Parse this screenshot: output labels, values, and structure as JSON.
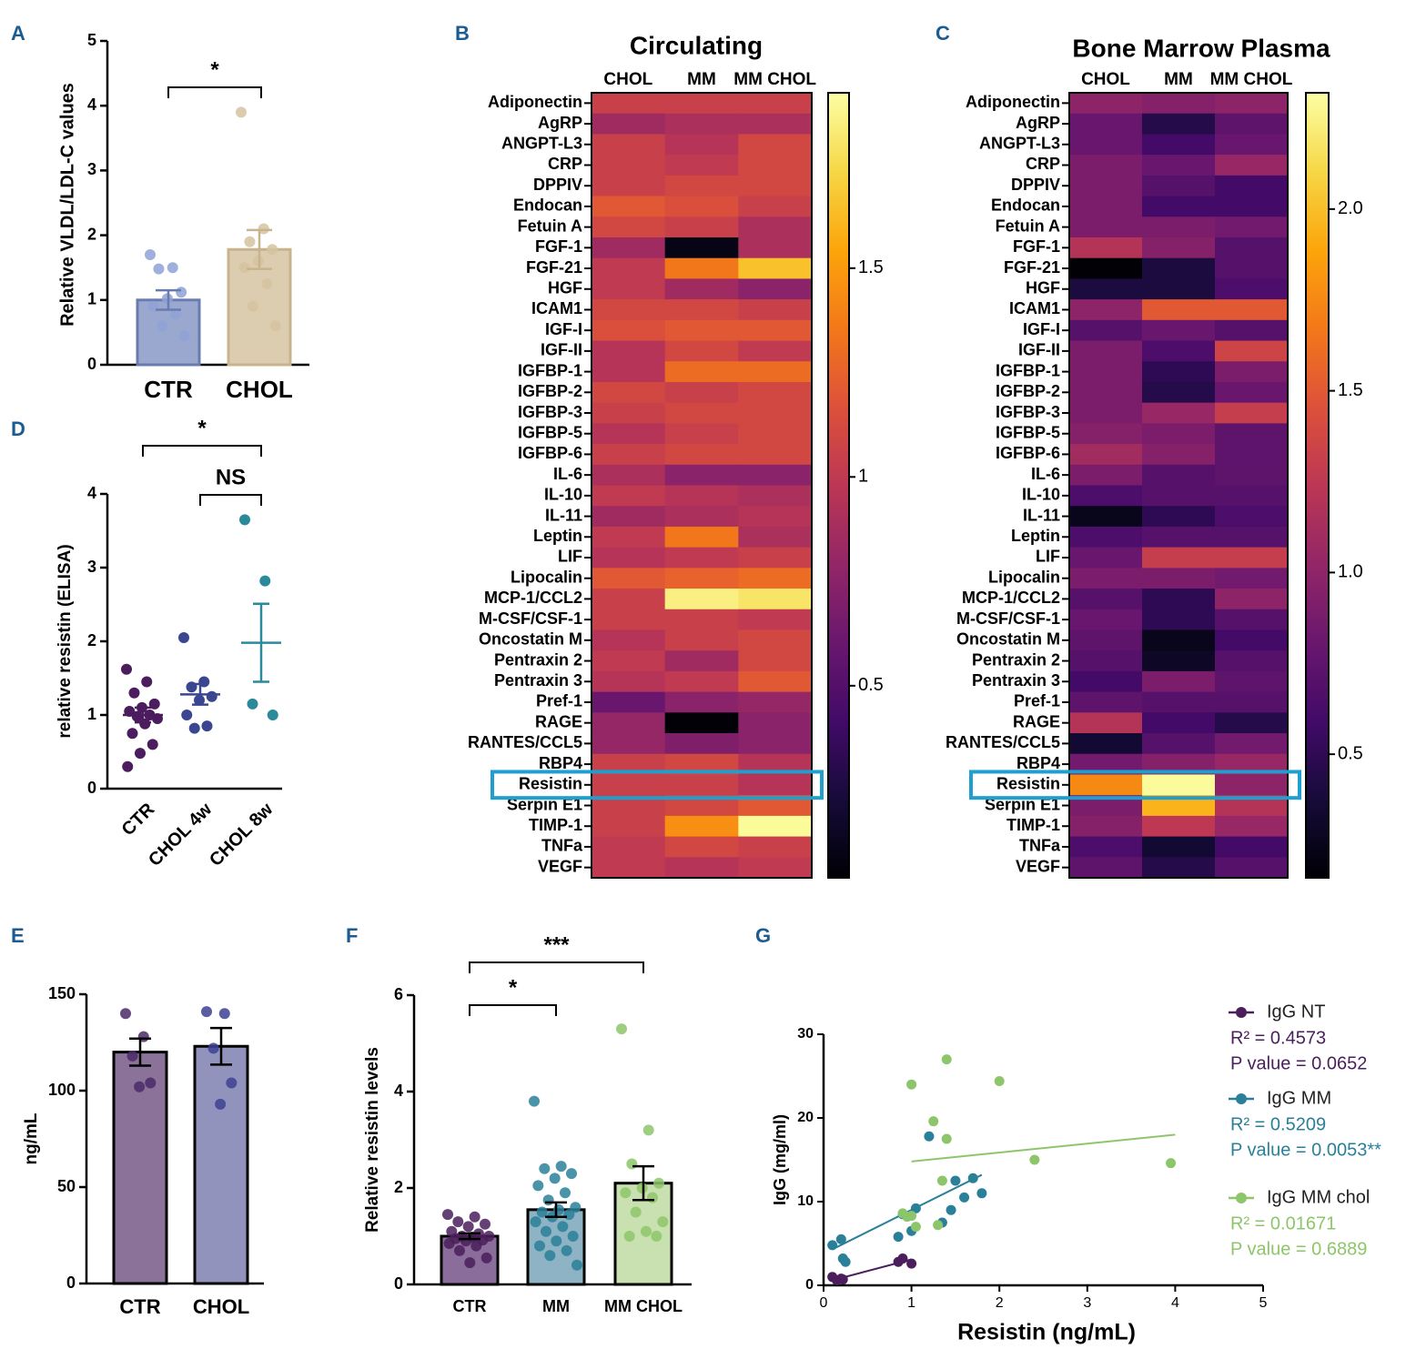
{
  "chart_data": [
    {
      "type": "bar",
      "panel": "A",
      "ylabel": "Relative VLDL/LDL-C values",
      "categories": [
        "CTR",
        "CHOL"
      ],
      "values": [
        1.0,
        1.78
      ],
      "errors": [
        0.15,
        0.3
      ],
      "points": [
        [
          1.7,
          1.5,
          1.48,
          1.12,
          1.02,
          0.9,
          0.78,
          0.6,
          0.45
        ],
        [
          3.9,
          2.1,
          1.9,
          1.78,
          1.6,
          1.5,
          1.25,
          0.9,
          0.6
        ]
      ],
      "colors": [
        "#9aa8d0",
        "#dccdb0"
      ],
      "edge_colors": [
        "#6a7bb0",
        "#c8b48c"
      ],
      "point_colors": [
        "#8fa2d6",
        "#d6c3a0"
      ],
      "ylim": [
        0,
        5
      ],
      "yticks": [
        0,
        1,
        2,
        3,
        4,
        5
      ],
      "annotations": [
        "*"
      ]
    },
    {
      "type": "heatmap",
      "panel": "B",
      "title": "Circulating",
      "columns": [
        "CHOL",
        "MM",
        "MM CHOL"
      ],
      "rows": [
        "Adiponectin",
        "AgRP",
        "ANGPT-L3",
        "CRP",
        "DPPIV",
        "Endocan",
        "Fetuin A",
        "FGF-1",
        "FGF-21",
        "HGF",
        "ICAM1",
        "IGF-I",
        "IGF-II",
        "IGFBP-1",
        "IGFBP-2",
        "IGFBP-3",
        "IGFBP-5",
        "IGFBP-6",
        "IL-6",
        "IL-10",
        "IL-11",
        "Leptin",
        "LIF",
        "Lipocalin",
        "MCP-1/CCL2",
        "M-CSF/CSF-1",
        "Oncostatin M",
        "Pentraxin 2",
        "Pentraxin 3",
        "Pref-1",
        "RAGE",
        "RANTES/CCL5",
        "RBP4",
        "Resistin",
        "Serpin E1",
        "TIMP-1",
        "TNFa",
        "VEGF"
      ],
      "values": [
        [
          1.05,
          1.05,
          1.05
        ],
        [
          0.85,
          0.9,
          0.9
        ],
        [
          1.05,
          0.95,
          1.1
        ],
        [
          1.05,
          1.0,
          1.1
        ],
        [
          1.05,
          1.1,
          1.1
        ],
        [
          1.2,
          1.15,
          1.05
        ],
        [
          1.1,
          1.05,
          0.9
        ],
        [
          0.85,
          0.1,
          0.9
        ],
        [
          1.0,
          1.35,
          1.65
        ],
        [
          1.0,
          0.85,
          0.75
        ],
        [
          1.1,
          1.1,
          1.05
        ],
        [
          1.15,
          1.2,
          1.2
        ],
        [
          0.95,
          1.1,
          1.0
        ],
        [
          0.95,
          1.3,
          1.3
        ],
        [
          1.1,
          1.05,
          1.1
        ],
        [
          1.05,
          1.1,
          1.1
        ],
        [
          0.95,
          1.05,
          1.1
        ],
        [
          1.05,
          1.1,
          1.1
        ],
        [
          0.9,
          0.75,
          0.75
        ],
        [
          1.0,
          0.95,
          0.9
        ],
        [
          0.85,
          0.9,
          0.95
        ],
        [
          1.0,
          1.35,
          0.9
        ],
        [
          0.95,
          1.0,
          1.05
        ],
        [
          1.2,
          1.25,
          1.3
        ],
        [
          1.05,
          1.85,
          1.8
        ],
        [
          1.05,
          1.05,
          1.0
        ],
        [
          0.95,
          1.05,
          1.1
        ],
        [
          1.0,
          0.85,
          1.1
        ],
        [
          0.95,
          1.0,
          1.2
        ],
        [
          0.6,
          0.75,
          0.8
        ],
        [
          0.8,
          0.05,
          0.75
        ],
        [
          0.8,
          0.7,
          0.75
        ],
        [
          1.05,
          1.1,
          0.95
        ],
        [
          1.05,
          1.05,
          0.95
        ],
        [
          1.05,
          1.1,
          1.2
        ],
        [
          1.05,
          1.45,
          1.9
        ],
        [
          1.0,
          1.1,
          1.05
        ],
        [
          1.0,
          0.95,
          1.0
        ]
      ],
      "clim": [
        0.04,
        1.92
      ],
      "cticks": [
        0.5,
        1,
        1.5
      ],
      "colormap": "inferno"
    },
    {
      "type": "heatmap",
      "panel": "C",
      "title": "Bone Marrow Plasma",
      "columns": [
        "CHOL",
        "MM",
        "MM CHOL"
      ],
      "rows": [
        "Adiponectin",
        "AgRP",
        "ANGPT-L3",
        "CRP",
        "DPPIV",
        "Endocan",
        "Fetuin A",
        "FGF-1",
        "FGF-21",
        "HGF",
        "ICAM1",
        "IGF-I",
        "IGF-II",
        "IGFBP-1",
        "IGFBP-2",
        "IGFBP-3",
        "IGFBP-5",
        "IGFBP-6",
        "IL-6",
        "IL-10",
        "IL-11",
        "Leptin",
        "LIF",
        "Lipocalin",
        "MCP-1/CCL2",
        "M-CSF/CSF-1",
        "Oncostatin M",
        "Pentraxin 2",
        "Pentraxin 3",
        "Pref-1",
        "RAGE",
        "RANTES/CCL5",
        "RBP4",
        "Resistin",
        "Serpin E1",
        "TIMP-1",
        "TNFa",
        "VEGF"
      ],
      "values": [
        [
          1.0,
          0.95,
          1.0
        ],
        [
          0.8,
          0.45,
          0.75
        ],
        [
          0.8,
          0.6,
          0.8
        ],
        [
          0.9,
          0.8,
          1.05
        ],
        [
          0.9,
          0.7,
          0.6
        ],
        [
          0.9,
          0.6,
          0.6
        ],
        [
          0.9,
          0.9,
          0.85
        ],
        [
          1.2,
          0.95,
          0.7
        ],
        [
          0.17,
          0.4,
          0.7
        ],
        [
          0.4,
          0.4,
          0.65
        ],
        [
          1.0,
          1.5,
          1.5
        ],
        [
          0.7,
          0.8,
          0.7
        ],
        [
          0.9,
          0.65,
          1.35
        ],
        [
          0.9,
          0.5,
          0.9
        ],
        [
          0.9,
          0.45,
          0.8
        ],
        [
          0.9,
          1.05,
          1.3
        ],
        [
          0.95,
          0.9,
          0.75
        ],
        [
          1.1,
          0.95,
          0.75
        ],
        [
          0.9,
          0.7,
          0.75
        ],
        [
          0.65,
          0.7,
          0.7
        ],
        [
          0.25,
          0.5,
          0.65
        ],
        [
          0.65,
          0.7,
          0.7
        ],
        [
          0.8,
          1.3,
          1.3
        ],
        [
          0.9,
          0.9,
          0.85
        ],
        [
          0.7,
          0.5,
          1.0
        ],
        [
          0.8,
          0.5,
          0.7
        ],
        [
          0.75,
          0.25,
          0.6
        ],
        [
          0.7,
          0.3,
          0.7
        ],
        [
          0.6,
          0.9,
          0.75
        ],
        [
          0.75,
          0.7,
          0.7
        ],
        [
          1.2,
          0.6,
          0.45
        ],
        [
          0.35,
          0.7,
          0.85
        ],
        [
          0.85,
          0.95,
          1.05
        ],
        [
          1.75,
          2.3,
          1.0
        ],
        [
          0.9,
          1.95,
          1.2
        ],
        [
          0.95,
          1.25,
          1.05
        ],
        [
          0.65,
          0.35,
          0.6
        ],
        [
          0.75,
          0.45,
          0.7
        ]
      ],
      "clim": [
        0.16,
        2.32
      ],
      "cticks": [
        0.5,
        {
          "value": 1,
          "label": "1.0"
        },
        1.5,
        {
          "value": 2,
          "label": "2.0"
        }
      ],
      "colormap": "inferno"
    },
    {
      "type": "dot",
      "panel": "D",
      "ylabel": "relative resistin (ELISA)",
      "categories": [
        "CTR",
        "CHOL 4w",
        "CHOL 8w"
      ],
      "values": [
        1.0,
        1.28,
        1.98
      ],
      "errors": [
        0.1,
        0.14,
        0.53
      ],
      "points": [
        [
          1.62,
          1.45,
          1.3,
          1.15,
          1.1,
          1.05,
          1.0,
          0.98,
          0.95,
          0.88,
          0.75,
          0.6,
          0.48,
          0.3
        ],
        [
          2.05,
          1.45,
          1.38,
          1.25,
          1.2,
          1.0,
          0.85,
          0.82
        ],
        [
          3.65,
          2.82,
          1.15,
          1.0
        ]
      ],
      "colors": [
        "#4b1c5e",
        "#3a4790",
        "#2a8a9c"
      ],
      "ylim": [
        0,
        4
      ],
      "yticks": [
        0,
        1,
        2,
        3,
        4
      ],
      "annotations": [
        "*",
        "NS"
      ]
    },
    {
      "type": "bar",
      "panel": "E",
      "ylabel": "ng/mL",
      "categories": [
        "CTR",
        "CHOL"
      ],
      "values": [
        120,
        123
      ],
      "errors": [
        7,
        9.5
      ],
      "points": [
        [
          140,
          128,
          118,
          104,
          102
        ],
        [
          141,
          140,
          122,
          104,
          93
        ]
      ],
      "colors": [
        "#8b7299",
        "#9193bd"
      ],
      "edge_colors": [
        "#000000",
        "#000000"
      ],
      "point_colors": [
        "#4a2a6a",
        "#3d4190"
      ],
      "ylim": [
        0,
        150
      ],
      "yticks": [
        0,
        50,
        100,
        150
      ],
      "annotations": []
    },
    {
      "type": "bar",
      "panel": "F",
      "ylabel": "Relative resistin levels",
      "categories": [
        "CTR",
        "MM",
        "MM CHOL"
      ],
      "values": [
        1.0,
        1.55,
        2.1
      ],
      "errors": [
        0.06,
        0.15,
        0.35
      ],
      "points": [
        [
          1.45,
          1.4,
          1.3,
          1.25,
          1.2,
          1.1,
          1.05,
          1.0,
          1.0,
          0.98,
          0.95,
          0.92,
          0.9,
          0.85,
          0.8,
          0.7,
          0.55,
          0.45
        ],
        [
          3.8,
          2.45,
          2.4,
          2.3,
          2.2,
          2.05,
          1.9,
          1.75,
          1.6,
          1.55,
          1.5,
          1.45,
          1.4,
          1.3,
          1.2,
          1.1,
          1.0,
          0.9,
          0.8,
          0.7,
          0.6,
          0.4
        ],
        [
          5.3,
          3.2,
          2.5,
          2.1,
          2.0,
          1.9,
          1.8,
          1.5,
          1.3,
          1.1,
          1.0,
          1.0
        ]
      ],
      "colors": [
        "#8a6d9b",
        "#8db3c4",
        "#c9e1b0"
      ],
      "edge_colors": [
        "#000000",
        "#000000",
        "#000000"
      ],
      "point_colors": [
        "#4a1f5c",
        "#2a8099",
        "#8dc66a"
      ],
      "ylim": [
        0,
        6
      ],
      "yticks": [
        0,
        2,
        4,
        6
      ],
      "annotations": [
        "***",
        "*"
      ]
    },
    {
      "type": "scatter",
      "panel": "G",
      "xlabel": "Resistin (ng/mL)",
      "ylabel": "IgG (mg/ml)",
      "xlim": [
        0,
        5
      ],
      "xticks": [
        0,
        1,
        2,
        3,
        4,
        5
      ],
      "ylim": [
        0,
        30
      ],
      "yticks": [
        0,
        10,
        20,
        30
      ],
      "series": [
        {
          "name": "IgG NT",
          "color": "#4a1f5c",
          "r2": "R² = 0.4573",
          "p": "P value = 0.0652",
          "x": [
            0.1,
            0.15,
            0.2,
            0.22,
            0.85,
            0.9,
            1.0
          ],
          "y": [
            1.0,
            0.6,
            0.8,
            0.7,
            2.8,
            3.2,
            2.6
          ],
          "fit_x": [
            0.1,
            1.0
          ],
          "fit_y": [
            0.6,
            3.1
          ]
        },
        {
          "name": "IgG MM",
          "color": "#2a8099",
          "r2": "R² = 0.5209",
          "p": "P value = 0.0053**",
          "x": [
            0.1,
            0.2,
            0.22,
            0.25,
            0.85,
            0.9,
            1.0,
            1.05,
            1.2,
            1.35,
            1.45,
            1.5,
            1.6,
            1.7,
            1.8
          ],
          "y": [
            4.8,
            5.5,
            3.2,
            2.8,
            5.8,
            8.5,
            6.5,
            9.2,
            17.8,
            7.5,
            9.0,
            12.5,
            10.5,
            12.8,
            11.0
          ],
          "fit_x": [
            0.1,
            1.8
          ],
          "fit_y": [
            4.3,
            13.2
          ]
        },
        {
          "name": "IgG MM chol",
          "color": "#8dc66a",
          "r2": "R² = 0.01671",
          "p": "P value = 0.6889",
          "x": [
            0.9,
            0.95,
            1.0,
            1.0,
            1.05,
            1.25,
            1.3,
            1.35,
            1.4,
            1.4,
            2.0,
            2.4,
            3.95
          ],
          "y": [
            8.6,
            8.2,
            24.0,
            8.3,
            7.0,
            19.6,
            7.2,
            12.5,
            17.5,
            27.0,
            24.4,
            15.0,
            14.6
          ],
          "fit_x": [
            1.0,
            4.0
          ],
          "fit_y": [
            14.8,
            18.0
          ]
        }
      ]
    }
  ]
}
